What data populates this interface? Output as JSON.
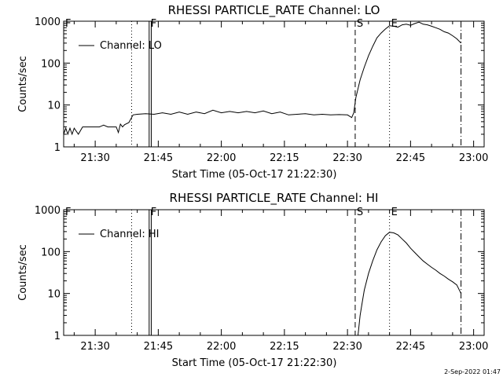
{
  "footer_date": "2-Sep-2022 01:47",
  "chart_data": [
    {
      "type": "line",
      "title": "RHESSI PARTICLE_RATE Channel: LO",
      "xlabel": "Start Time (05-Oct-17 21:22:30)",
      "ylabel": "Counts/sec",
      "yscale": "log",
      "ylim": [
        1,
        1000
      ],
      "xlim": [
        "21:22:30",
        "23:02:30"
      ],
      "yticks": [
        1,
        10,
        100,
        1000
      ],
      "ytick_labels": [
        "1",
        "10",
        "100",
        "1000"
      ],
      "xticks": [
        "21:30",
        "21:45",
        "22:00",
        "22:15",
        "22:30",
        "22:45",
        "23:00"
      ],
      "legend": {
        "label": "Channel: LO",
        "placement": "top-left"
      },
      "markers": [
        {
          "time": "21:38:40",
          "style": "dotted",
          "label": ""
        },
        {
          "time": "21:42:50",
          "style": "solid",
          "label": "F"
        },
        {
          "time": "21:43:20",
          "style": "solid",
          "label": ""
        },
        {
          "time": "22:31:50",
          "style": "dashed",
          "label": "S"
        },
        {
          "time": "22:40:00",
          "style": "dotted",
          "label": "E"
        },
        {
          "time": "22:57:00",
          "style": "dashdot",
          "label": ""
        },
        {
          "time": "21:22:30",
          "style": "none",
          "label": "F"
        }
      ],
      "series": [
        {
          "name": "Channel: LO",
          "x": [
            "21:22:30",
            "21:23:00",
            "21:23:30",
            "21:24:00",
            "21:24:30",
            "21:25:00",
            "21:26:00",
            "21:27:00",
            "21:28:00",
            "21:29:00",
            "21:30:00",
            "21:31:00",
            "21:32:00",
            "21:33:00",
            "21:34:00",
            "21:35:00",
            "21:35:30",
            "21:36:00",
            "21:36:30",
            "21:37:00",
            "21:38:00",
            "21:39:00",
            "21:40:00",
            "21:42:00",
            "21:44:00",
            "21:46:00",
            "21:48:00",
            "21:50:00",
            "21:52:00",
            "21:54:00",
            "21:56:00",
            "21:58:00",
            "22:00:00",
            "22:02:00",
            "22:04:00",
            "22:06:00",
            "22:08:00",
            "22:10:00",
            "22:12:00",
            "22:14:00",
            "22:16:00",
            "22:18:00",
            "22:20:00",
            "22:22:00",
            "22:24:00",
            "22:26:00",
            "22:28:00",
            "22:30:00",
            "22:31:00",
            "22:31:30",
            "22:32:00",
            "22:33:00",
            "22:34:00",
            "22:35:00",
            "22:36:00",
            "22:37:00",
            "22:38:00",
            "22:39:00",
            "22:40:00",
            "22:41:00",
            "22:42:00",
            "22:43:00",
            "22:44:00",
            "22:45:00",
            "22:46:00",
            "22:47:00",
            "22:48:00",
            "22:49:00",
            "22:50:00",
            "22:51:00",
            "22:52:00",
            "22:53:00",
            "22:54:00",
            "22:55:00",
            "22:56:00",
            "22:57:00"
          ],
          "y": [
            2.0,
            2.8,
            2.0,
            2.8,
            2.0,
            2.8,
            2.0,
            3.0,
            3.0,
            3.0,
            3.0,
            3.0,
            3.3,
            3.0,
            3.0,
            3.0,
            2.2,
            3.5,
            3.0,
            3.4,
            3.8,
            5.8,
            6.0,
            6.2,
            6.0,
            6.5,
            6.0,
            6.8,
            6.0,
            6.8,
            6.2,
            7.5,
            6.5,
            7.0,
            6.5,
            7.0,
            6.5,
            7.2,
            6.2,
            6.8,
            5.8,
            6.0,
            6.2,
            5.8,
            6.0,
            5.8,
            5.9,
            5.8,
            5.0,
            6.5,
            15,
            40,
            80,
            150,
            250,
            400,
            520,
            650,
            780,
            760,
            720,
            820,
            850,
            800,
            880,
            950,
            850,
            820,
            760,
            700,
            640,
            560,
            520,
            450,
            380,
            300
          ]
        }
      ]
    },
    {
      "type": "line",
      "title": "RHESSI PARTICLE_RATE Channel: HI",
      "xlabel": "Start Time (05-Oct-17 21:22:30)",
      "ylabel": "Counts/sec",
      "yscale": "log",
      "ylim": [
        1,
        1000
      ],
      "xlim": [
        "21:22:30",
        "23:02:30"
      ],
      "yticks": [
        1,
        10,
        100,
        1000
      ],
      "ytick_labels": [
        "1",
        "10",
        "100",
        "1000"
      ],
      "xticks": [
        "21:30",
        "21:45",
        "22:00",
        "22:15",
        "22:30",
        "22:45",
        "23:00"
      ],
      "legend": {
        "label": "Channel: HI",
        "placement": "top-left"
      },
      "markers": [
        {
          "time": "21:38:40",
          "style": "dotted",
          "label": ""
        },
        {
          "time": "21:42:50",
          "style": "solid",
          "label": "F"
        },
        {
          "time": "21:43:20",
          "style": "solid",
          "label": ""
        },
        {
          "time": "22:31:50",
          "style": "dashed",
          "label": "S"
        },
        {
          "time": "22:40:00",
          "style": "dotted",
          "label": "E"
        },
        {
          "time": "22:57:00",
          "style": "dashdot",
          "label": ""
        },
        {
          "time": "21:22:30",
          "style": "none",
          "label": "F"
        }
      ],
      "series": [
        {
          "name": "Channel: HI",
          "x": [
            "22:32:30",
            "22:33:00",
            "22:33:30",
            "22:34:00",
            "22:35:00",
            "22:36:00",
            "22:37:00",
            "22:38:00",
            "22:39:00",
            "22:40:00",
            "22:41:00",
            "22:42:00",
            "22:43:00",
            "22:44:00",
            "22:45:00",
            "22:46:00",
            "22:47:00",
            "22:48:00",
            "22:49:00",
            "22:50:00",
            "22:51:00",
            "22:52:00",
            "22:53:00",
            "22:54:00",
            "22:55:00",
            "22:56:00",
            "22:57:00"
          ],
          "y": [
            1.0,
            3.0,
            6.0,
            12,
            30,
            60,
            110,
            170,
            240,
            290,
            280,
            250,
            200,
            160,
            120,
            95,
            75,
            60,
            50,
            42,
            36,
            30,
            26,
            22,
            19,
            16,
            10
          ]
        }
      ]
    }
  ]
}
